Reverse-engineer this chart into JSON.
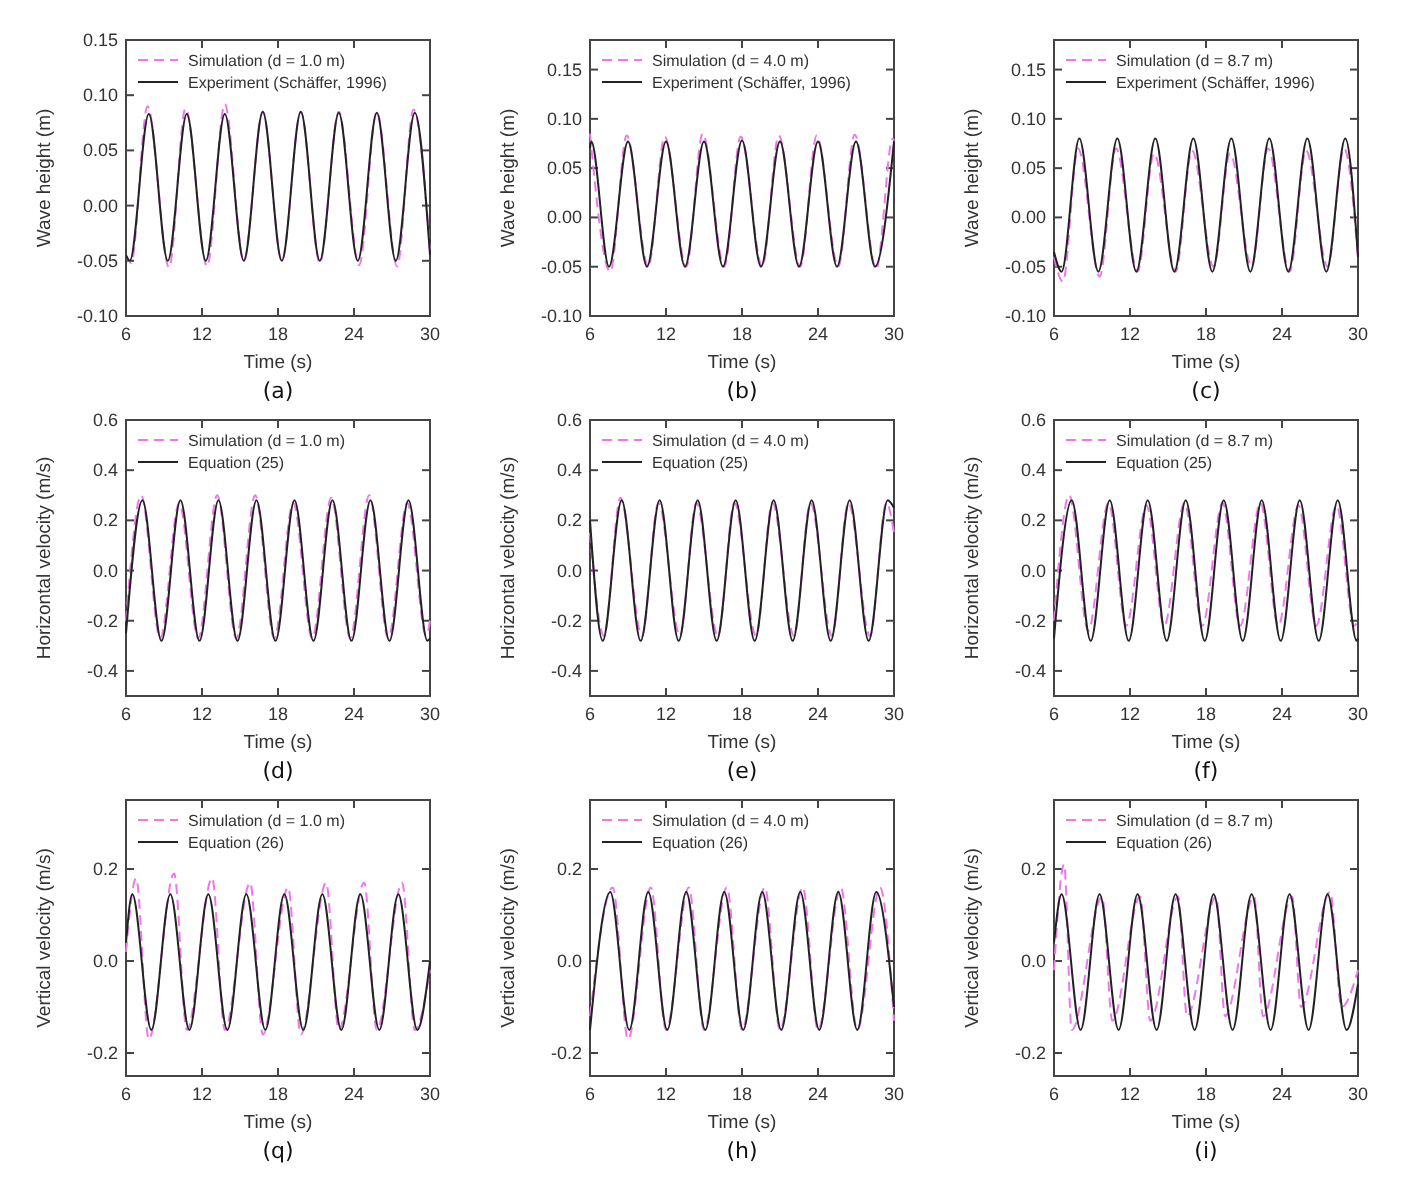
{
  "chart_data": [
    {
      "type": "line",
      "xlabel": "Time (s)",
      "ylabel": "Wave height (m)",
      "annotations": [
        "(a)"
      ],
      "xlim": [
        6,
        30
      ],
      "xticks": [
        6,
        12,
        18,
        24,
        30
      ],
      "ylim": [
        -0.1,
        0.15
      ],
      "yticks": [
        {
          "value": -0.1,
          "label": "-0.10"
        },
        {
          "value": -0.05,
          "label": "-0.05"
        },
        {
          "value": 0,
          "label": "0.00"
        },
        {
          "value": 0.05,
          "label": "0.05"
        },
        {
          "value": 0.1,
          "label": "0.10"
        },
        {
          "value": 0.15,
          "label": "0.15"
        }
      ],
      "grid": false,
      "legend": "top left",
      "marker": "none",
      "series": [
        {
          "name": "Simulation (d = 1.0 m)",
          "color": "#ee77ee",
          "line_style": "dashed",
          "x": [
            6,
            6.4,
            7.7,
            9.4,
            10.7,
            12.4,
            13.8,
            15.3,
            16.8,
            18.3,
            19.8,
            21.3,
            22.8,
            24.4,
            25.8,
            27.4,
            28.7,
            30
          ],
          "values": [
            -0.045,
            -0.052,
            0.09,
            -0.056,
            0.088,
            -0.055,
            0.092,
            -0.05,
            0.085,
            -0.05,
            0.085,
            -0.052,
            0.085,
            -0.054,
            0.085,
            -0.055,
            0.087,
            -0.04
          ]
        },
        {
          "name": "Experiment (Schäffer, 1996)",
          "color": "#222222",
          "line_style": "solid",
          "x": [
            6,
            6.3,
            7.8,
            9.3,
            10.8,
            12.3,
            13.8,
            15.3,
            16.8,
            18.3,
            19.8,
            21.3,
            22.8,
            24.3,
            25.8,
            27.3,
            28.8,
            30
          ],
          "values": [
            -0.045,
            -0.05,
            0.083,
            -0.05,
            0.083,
            -0.05,
            0.083,
            -0.05,
            0.085,
            -0.05,
            0.085,
            -0.05,
            0.084,
            -0.05,
            0.084,
            -0.05,
            0.084,
            -0.045
          ]
        }
      ]
    },
    {
      "type": "line",
      "xlabel": "Time (s)",
      "ylabel": "Wave height (m)",
      "annotations": [
        "(b)"
      ],
      "xlim": [
        6,
        30
      ],
      "xticks": [
        6,
        12,
        18,
        24,
        30
      ],
      "ylim": [
        -0.1,
        0.18
      ],
      "yticks": [
        {
          "value": -0.1,
          "label": "-0.10"
        },
        {
          "value": -0.05,
          "label": "-0.05"
        },
        {
          "value": 0,
          "label": "0.00"
        },
        {
          "value": 0.05,
          "label": "0.05"
        },
        {
          "value": 0.1,
          "label": "0.10"
        },
        {
          "value": 0.15,
          "label": "0.15"
        }
      ],
      "grid": false,
      "legend": "top left",
      "marker": "none",
      "series": [
        {
          "name": "Simulation (d = 4.0 m)",
          "color": "#ee77ee",
          "line_style": "dashed",
          "x": [
            6,
            7.6,
            8.9,
            10.6,
            11.9,
            13.6,
            14.9,
            16.6,
            17.9,
            19.6,
            20.9,
            22.6,
            23.9,
            25.6,
            26.9,
            28.6,
            29.9,
            30
          ],
          "values": [
            0.085,
            -0.055,
            0.083,
            -0.05,
            0.082,
            -0.05,
            0.085,
            -0.05,
            0.082,
            -0.05,
            0.083,
            -0.05,
            0.083,
            -0.05,
            0.084,
            -0.052,
            0.08,
            0.078
          ]
        },
        {
          "name": "Experiment (Schäffer, 1996)",
          "color": "#222222",
          "line_style": "solid",
          "x": [
            6,
            6.1,
            7.5,
            9,
            10.5,
            12,
            13.5,
            15,
            16.5,
            18,
            19.5,
            21,
            22.5,
            24,
            25.5,
            27,
            28.5,
            30
          ],
          "values": [
            0.07,
            0.077,
            -0.05,
            0.077,
            -0.05,
            0.077,
            -0.05,
            0.077,
            -0.05,
            0.078,
            -0.05,
            0.077,
            -0.05,
            0.077,
            -0.05,
            0.077,
            -0.05,
            0.077
          ]
        }
      ]
    },
    {
      "type": "line",
      "xlabel": "Time (s)",
      "ylabel": "Wave height (m)",
      "annotations": [
        "(c)"
      ],
      "xlim": [
        6,
        30
      ],
      "xticks": [
        6,
        12,
        18,
        24,
        30
      ],
      "ylim": [
        -0.1,
        0.18
      ],
      "yticks": [
        {
          "value": -0.1,
          "label": "-0.10"
        },
        {
          "value": -0.05,
          "label": "-0.05"
        },
        {
          "value": 0,
          "label": "0.00"
        },
        {
          "value": 0.05,
          "label": "0.05"
        },
        {
          "value": 0.1,
          "label": "0.10"
        },
        {
          "value": 0.15,
          "label": "0.15"
        }
      ],
      "grid": false,
      "legend": "top left",
      "marker": "none",
      "series": [
        {
          "name": "Simulation (d = 8.7 m)",
          "color": "#ee77ee",
          "line_style": "dashed",
          "x": [
            6,
            6.7,
            7.9,
            9.6,
            10.9,
            12.6,
            13.9,
            15.6,
            16.9,
            18.6,
            19.9,
            21.6,
            22.9,
            24.6,
            25.9,
            27.6,
            28.9,
            30
          ],
          "values": [
            -0.04,
            -0.065,
            0.07,
            -0.06,
            0.07,
            -0.055,
            0.065,
            -0.055,
            0.068,
            -0.05,
            0.065,
            -0.05,
            0.07,
            -0.055,
            0.068,
            -0.05,
            0.07,
            -0.04
          ]
        },
        {
          "name": "Experiment (Schäffer, 1996)",
          "color": "#222222",
          "line_style": "solid",
          "x": [
            6,
            6.6,
            8,
            9.5,
            11,
            12.5,
            14,
            15.5,
            17,
            18.5,
            20,
            21.5,
            23,
            24.5,
            26,
            27.5,
            29,
            30
          ],
          "values": [
            -0.035,
            -0.055,
            0.08,
            -0.055,
            0.08,
            -0.055,
            0.08,
            -0.055,
            0.08,
            -0.055,
            0.08,
            -0.055,
            0.08,
            -0.055,
            0.08,
            -0.055,
            0.08,
            -0.04
          ]
        }
      ]
    },
    {
      "type": "line",
      "xlabel": "Time (s)",
      "ylabel": "Horizontal velocity (m/s)",
      "annotations": [
        "(d)"
      ],
      "xlim": [
        6,
        30
      ],
      "xticks": [
        6,
        12,
        18,
        24,
        30
      ],
      "ylim": [
        -0.5,
        0.6
      ],
      "yticks": [
        -0.4,
        -0.2,
        {
          "value": 0,
          "label": "0.0"
        },
        0.2,
        0.4,
        0.6
      ],
      "grid": false,
      "legend": "top left",
      "marker": "none",
      "series": [
        {
          "name": "Simulation (d = 1.0 m)",
          "color": "#ee77ee",
          "line_style": "dashed",
          "x": [
            6,
            7.2,
            8.7,
            10.2,
            11.7,
            13.2,
            14.7,
            16.2,
            17.7,
            19.2,
            20.7,
            22.2,
            23.7,
            25.2,
            26.7,
            28.2,
            29.7,
            30
          ],
          "values": [
            -0.2,
            0.3,
            -0.27,
            0.27,
            -0.27,
            0.3,
            -0.27,
            0.3,
            -0.27,
            0.27,
            -0.27,
            0.29,
            -0.27,
            0.3,
            -0.27,
            0.27,
            -0.26,
            -0.2
          ]
        },
        {
          "name": "Equation (25)",
          "color": "#222222",
          "line_style": "solid",
          "x": [
            6,
            7.3,
            8.8,
            10.3,
            11.8,
            13.3,
            14.8,
            16.3,
            17.8,
            19.3,
            20.8,
            22.3,
            23.8,
            25.3,
            26.8,
            28.3,
            29.8,
            30
          ],
          "values": [
            -0.25,
            0.28,
            -0.28,
            0.28,
            -0.28,
            0.28,
            -0.28,
            0.28,
            -0.28,
            0.28,
            -0.28,
            0.28,
            -0.28,
            0.28,
            -0.28,
            0.28,
            -0.28,
            -0.27
          ]
        }
      ]
    },
    {
      "type": "line",
      "xlabel": "Time (s)",
      "ylabel": "Horizontal velocity (m/s)",
      "annotations": [
        "(e)"
      ],
      "xlim": [
        6,
        30
      ],
      "xticks": [
        6,
        12,
        18,
        24,
        30
      ],
      "ylim": [
        -0.5,
        0.6
      ],
      "yticks": [
        -0.4,
        -0.2,
        {
          "value": 0,
          "label": "0.0"
        },
        0.2,
        0.4,
        0.6
      ],
      "grid": false,
      "legend": "top left",
      "marker": "none",
      "series": [
        {
          "name": "Simulation (d = 4.0 m)",
          "color": "#ee77ee",
          "line_style": "dashed",
          "x": [
            6,
            7.1,
            8.4,
            10.1,
            11.4,
            13.1,
            14.4,
            16.1,
            17.4,
            19.1,
            20.4,
            22.1,
            23.4,
            25.1,
            26.4,
            28.1,
            29.4,
            30
          ],
          "values": [
            0.15,
            -0.26,
            0.29,
            -0.26,
            0.27,
            -0.26,
            0.27,
            -0.26,
            0.27,
            -0.26,
            0.27,
            -0.26,
            0.27,
            -0.26,
            0.27,
            -0.26,
            0.27,
            0.15
          ]
        },
        {
          "name": "Equation (25)",
          "color": "#222222",
          "line_style": "solid",
          "x": [
            6,
            7,
            8.5,
            10,
            11.5,
            13,
            14.5,
            16,
            17.5,
            19,
            20.5,
            22,
            23.5,
            25,
            26.5,
            28,
            29.5,
            30
          ],
          "values": [
            0.2,
            -0.28,
            0.28,
            -0.28,
            0.28,
            -0.28,
            0.28,
            -0.28,
            0.28,
            -0.28,
            0.28,
            -0.28,
            0.28,
            -0.28,
            0.28,
            -0.28,
            0.28,
            0.25
          ]
        }
      ]
    },
    {
      "type": "line",
      "xlabel": "Time (s)",
      "ylabel": "Horizontal velocity (m/s)",
      "annotations": [
        "(f)"
      ],
      "xlim": [
        6,
        30
      ],
      "xticks": [
        6,
        12,
        18,
        24,
        30
      ],
      "ylim": [
        -0.5,
        0.6
      ],
      "yticks": [
        -0.4,
        -0.2,
        {
          "value": 0,
          "label": "0.0"
        },
        0.2,
        0.4,
        0.6
      ],
      "grid": false,
      "legend": "top left",
      "marker": "none",
      "series": [
        {
          "name": "Simulation (d = 8.7 m)",
          "color": "#ee77ee",
          "line_style": "dashed",
          "x": [
            6,
            7.2,
            8.7,
            10.3,
            11.7,
            13.3,
            14.7,
            16.3,
            17.7,
            19.3,
            20.7,
            22.3,
            23.7,
            25.3,
            26.7,
            28.3,
            29.7,
            30
          ],
          "values": [
            -0.2,
            0.3,
            -0.24,
            0.27,
            -0.22,
            0.26,
            -0.22,
            0.27,
            -0.22,
            0.27,
            -0.22,
            0.27,
            -0.22,
            0.26,
            -0.22,
            0.26,
            -0.22,
            -0.2
          ]
        },
        {
          "name": "Equation (25)",
          "color": "#222222",
          "line_style": "solid",
          "x": [
            6,
            7.4,
            8.9,
            10.4,
            11.9,
            13.4,
            14.9,
            16.4,
            17.9,
            19.4,
            20.9,
            22.4,
            23.9,
            25.4,
            26.9,
            28.4,
            29.9,
            30
          ],
          "values": [
            -0.27,
            0.28,
            -0.28,
            0.28,
            -0.28,
            0.28,
            -0.28,
            0.28,
            -0.28,
            0.28,
            -0.28,
            0.28,
            -0.28,
            0.28,
            -0.28,
            0.28,
            -0.28,
            -0.27
          ]
        }
      ]
    },
    {
      "type": "line",
      "xlabel": "Time (s)",
      "ylabel": "Vertical velocity (m/s)",
      "annotations": [
        "(q)"
      ],
      "xlim": [
        6,
        30
      ],
      "xticks": [
        6,
        12,
        18,
        24,
        30
      ],
      "ylim": [
        -0.25,
        0.35
      ],
      "yticks": [
        -0.2,
        {
          "value": 0,
          "label": "0.0"
        },
        0.2
      ],
      "grid": false,
      "legend": "top left",
      "marker": "none",
      "series": [
        {
          "name": "Simulation (d = 1.0 m)",
          "color": "#ee77ee",
          "line_style": "dashed",
          "x": [
            6,
            6.8,
            7.8,
            9.8,
            10.8,
            12.8,
            13.8,
            15.8,
            16.8,
            18.8,
            19.8,
            21.8,
            22.8,
            24.8,
            25.8,
            27.8,
            28.8,
            30
          ],
          "values": [
            0.02,
            0.18,
            -0.17,
            0.19,
            -0.15,
            0.18,
            -0.15,
            0.17,
            -0.16,
            0.16,
            -0.16,
            0.17,
            -0.15,
            0.17,
            -0.15,
            0.17,
            -0.15,
            -0.02
          ]
        },
        {
          "name": "Equation (26)",
          "color": "#222222",
          "line_style": "solid",
          "x": [
            6,
            6.5,
            8,
            9.5,
            11,
            12.5,
            14,
            15.5,
            17,
            18.5,
            20,
            21.5,
            23,
            24.5,
            26,
            27.5,
            29,
            30
          ],
          "values": [
            0.04,
            0.145,
            -0.15,
            0.145,
            -0.15,
            0.145,
            -0.15,
            0.145,
            -0.15,
            0.145,
            -0.15,
            0.145,
            -0.15,
            0.145,
            -0.15,
            0.145,
            -0.15,
            0
          ]
        }
      ]
    },
    {
      "type": "line",
      "xlabel": "Time (s)",
      "ylabel": "Vertical velocity (m/s)",
      "annotations": [
        "(h)"
      ],
      "xlim": [
        6,
        30
      ],
      "xticks": [
        6,
        12,
        18,
        24,
        30
      ],
      "ylim": [
        -0.25,
        0.35
      ],
      "yticks": [
        -0.2,
        {
          "value": 0,
          "label": "0.0"
        },
        0.2
      ],
      "grid": false,
      "legend": "top left",
      "marker": "none",
      "series": [
        {
          "name": "Simulation (d = 4.0 m)",
          "color": "#ee77ee",
          "line_style": "dashed",
          "x": [
            6,
            7.8,
            9,
            10.8,
            12,
            13.8,
            15,
            16.8,
            18,
            19.8,
            21,
            22.8,
            24,
            25.8,
            27.1,
            28.9,
            30
          ],
          "values": [
            -0.12,
            0.16,
            -0.17,
            0.16,
            -0.15,
            0.16,
            -0.15,
            0.16,
            -0.15,
            0.16,
            -0.15,
            0.16,
            -0.15,
            0.16,
            -0.15,
            0.16,
            -0.13
          ]
        },
        {
          "name": "Equation (26)",
          "color": "#222222",
          "line_style": "solid",
          "x": [
            6,
            7.6,
            9.1,
            10.6,
            12.1,
            13.6,
            15.1,
            16.6,
            18.1,
            19.6,
            21.1,
            22.6,
            24.1,
            25.6,
            27.1,
            28.6,
            30
          ],
          "values": [
            -0.15,
            0.15,
            -0.15,
            0.15,
            -0.15,
            0.15,
            -0.15,
            0.15,
            -0.15,
            0.15,
            -0.15,
            0.15,
            -0.15,
            0.15,
            -0.15,
            0.15,
            -0.1
          ]
        }
      ]
    },
    {
      "type": "line",
      "xlabel": "Time (s)",
      "ylabel": "Vertical velocity (m/s)",
      "annotations": [
        "(i)"
      ],
      "xlim": [
        6,
        30
      ],
      "xticks": [
        6,
        12,
        18,
        24,
        30
      ],
      "ylim": [
        -0.25,
        0.35
      ],
      "yticks": [
        -0.2,
        {
          "value": 0,
          "label": "0.0"
        },
        0.2
      ],
      "grid": false,
      "legend": "top left",
      "marker": "none",
      "series": [
        {
          "name": "Simulation (d = 8.7 m)",
          "color": "#ee77ee",
          "line_style": "dashed",
          "x": [
            6,
            6.8,
            7.4,
            9.8,
            10.6,
            12.8,
            13.6,
            15.8,
            16.5,
            18.8,
            19.5,
            21.8,
            22.5,
            24.8,
            25.5,
            27.8,
            28.7,
            30
          ],
          "values": [
            -0.02,
            0.21,
            -0.15,
            0.14,
            -0.13,
            0.14,
            -0.13,
            0.14,
            -0.12,
            0.14,
            -0.12,
            0.14,
            -0.12,
            0.14,
            -0.1,
            0.15,
            -0.1,
            -0.02
          ]
        },
        {
          "name": "Equation (26)",
          "color": "#222222",
          "line_style": "solid",
          "x": [
            6,
            6.6,
            8.1,
            9.6,
            11.1,
            12.6,
            14.1,
            15.6,
            17.1,
            18.6,
            20.1,
            21.6,
            23.1,
            24.6,
            26.1,
            27.6,
            29.1,
            30
          ],
          "values": [
            0.04,
            0.145,
            -0.15,
            0.145,
            -0.15,
            0.145,
            -0.15,
            0.145,
            -0.15,
            0.145,
            -0.15,
            0.145,
            -0.15,
            0.145,
            -0.15,
            0.145,
            -0.15,
            -0.05
          ]
        }
      ]
    }
  ]
}
